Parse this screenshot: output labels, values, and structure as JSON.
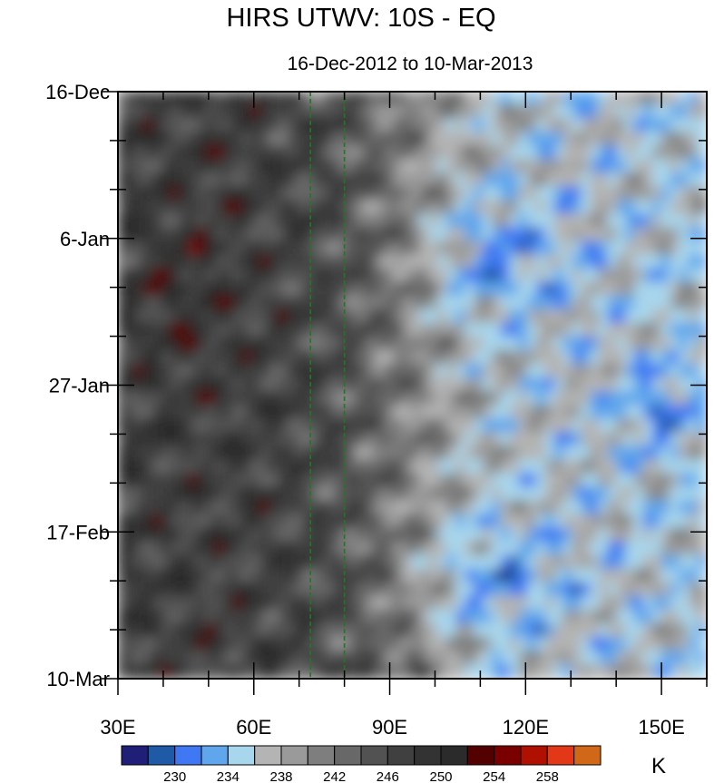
{
  "chart_data": {
    "type": "heatmap",
    "title": "HIRS UTWV: 10S - EQ",
    "subtitle": "16-Dec-2012 to 10-Mar-2013",
    "x_ticks": [
      {
        "label": "30E",
        "value": 30
      },
      {
        "label": "60E",
        "value": 60
      },
      {
        "label": "90E",
        "value": 90
      },
      {
        "label": "120E",
        "value": 120
      },
      {
        "label": "150E",
        "value": 150
      }
    ],
    "xlim": [
      30,
      160
    ],
    "y_ticks": [
      {
        "label": "16-Dec",
        "value": 0
      },
      {
        "label": "6-Jan",
        "value": 21
      },
      {
        "label": "27-Jan",
        "value": 42
      },
      {
        "label": "17-Feb",
        "value": 63
      },
      {
        "label": "10-Mar",
        "value": 84
      }
    ],
    "ylim": [
      0,
      84
    ],
    "reference_lines_x": [
      72.5,
      80
    ],
    "colorbar": {
      "unit": "K",
      "labels": [
        {
          "label": "230",
          "value": 230
        },
        {
          "label": "234",
          "value": 234
        },
        {
          "label": "238",
          "value": 238
        },
        {
          "label": "242",
          "value": 242
        },
        {
          "label": "246",
          "value": 246
        },
        {
          "label": "250",
          "value": 250
        },
        {
          "label": "254",
          "value": 254
        },
        {
          "label": "258",
          "value": 258
        }
      ],
      "levels": [
        228,
        230,
        232,
        234,
        236,
        238,
        240,
        242,
        244,
        246,
        248,
        250,
        252,
        254,
        256,
        258,
        260
      ],
      "colors": [
        "#1f1f78",
        "#1e5aa6",
        "#3f78f2",
        "#5fa6ec",
        "#a8d6ec",
        "#b4b4b4",
        "#9a9a9a",
        "#7e7e7e",
        "#686868",
        "#525252",
        "#404040",
        "#333333",
        "#2b2b2b",
        "#520000",
        "#7a0000",
        "#b01000",
        "#e23818",
        "#d06818"
      ]
    }
  }
}
